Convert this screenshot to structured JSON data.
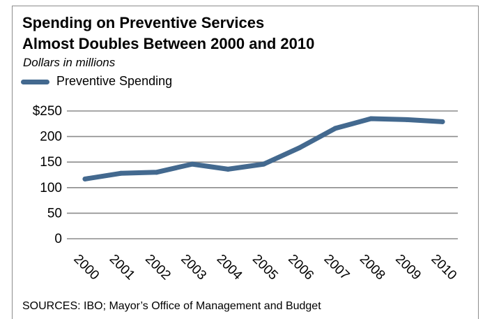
{
  "colors": {
    "series": "#43698f",
    "gridline": "#8c8c8c",
    "frame": "#8c8c8c"
  },
  "title_line1": "Spending on Preventive Services",
  "title_line2": "Almost Doubles Between 2000 and 2010",
  "subtitle": "Dollars in millions",
  "source": "SOURCES: IBO; Mayor’s Office of Management and Budget",
  "chart_data": {
    "type": "line",
    "x": [
      "2000",
      "2001",
      "2002",
      "2003",
      "2004",
      "2005",
      "2006",
      "2007",
      "2008",
      "2009",
      "2010"
    ],
    "series": [
      {
        "name": "Preventive Spending",
        "values": [
          117,
          128,
          130,
          146,
          136,
          146,
          178,
          216,
          235,
          233,
          229
        ]
      }
    ],
    "ylim": [
      0,
      250
    ],
    "yticks": [
      0,
      50,
      100,
      150,
      200,
      250
    ],
    "ytick_labels": [
      "0",
      "50",
      "100",
      "150",
      "200",
      "$250"
    ],
    "grid": true,
    "legend": "top-left"
  }
}
